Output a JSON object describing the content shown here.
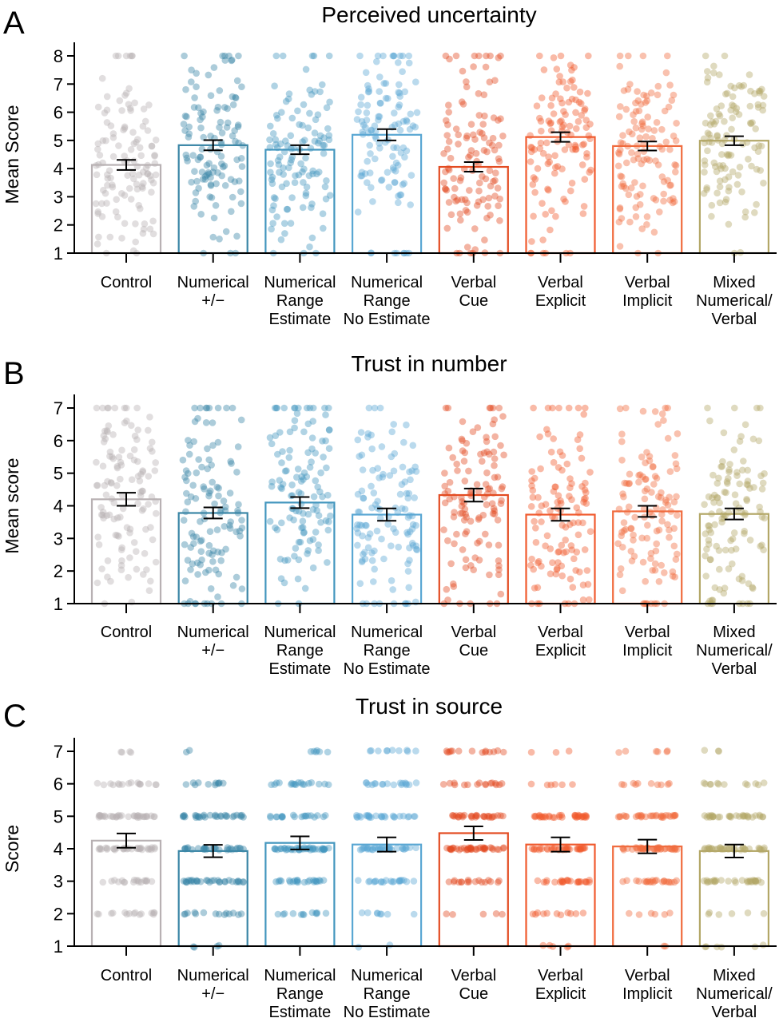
{
  "colors": {
    "Control": "#b8b1b3",
    "Numerical +/-": "#3a86a6",
    "Numerical Range Estimate": "#4396be",
    "Numerical Range No Estimate": "#5aa7d3",
    "Verbal Cue": "#e34b21",
    "Verbal Explicit": "#f05a2e",
    "Verbal Implicit": "#f06b3e",
    "Mixed Numerical/Verbal": "#b3a767",
    "axis": "#000000",
    "errorbar": "#000000"
  },
  "chart_data": [
    {
      "panel": "A",
      "type": "bar",
      "title": "Perceived uncertainty",
      "ylabel": "Mean Score",
      "xlabel": "",
      "ylim": [
        1,
        8
      ],
      "yticks": [
        1,
        2,
        3,
        4,
        5,
        6,
        7,
        8
      ],
      "discrete": false,
      "categories": [
        {
          "key": "Control",
          "label": [
            "Control"
          ]
        },
        {
          "key": "Numerical +/-",
          "label": [
            "Numerical",
            "+/−"
          ]
        },
        {
          "key": "Numerical Range Estimate",
          "label": [
            "Numerical",
            "Range",
            "Estimate"
          ]
        },
        {
          "key": "Numerical Range No Estimate",
          "label": [
            "Numerical",
            "Range",
            "No Estimate"
          ]
        },
        {
          "key": "Verbal Cue",
          "label": [
            "Verbal",
            "Cue"
          ]
        },
        {
          "key": "Verbal Explicit",
          "label": [
            "Verbal",
            "Explicit"
          ]
        },
        {
          "key": "Verbal Implicit",
          "label": [
            "Verbal",
            "Implicit"
          ]
        },
        {
          "key": "Mixed Numerical/Verbal",
          "label": [
            "Mixed",
            "Numerical/",
            "Verbal"
          ]
        }
      ],
      "values": [
        4.13,
        4.83,
        4.67,
        5.2,
        4.06,
        5.12,
        4.8,
        4.99
      ],
      "error": [
        0.18,
        0.18,
        0.16,
        0.2,
        0.17,
        0.17,
        0.16,
        0.16
      ]
    },
    {
      "panel": "B",
      "type": "bar",
      "title": "Trust in number",
      "ylabel": "Mean score",
      "xlabel": "",
      "ylim": [
        1,
        7
      ],
      "yticks": [
        1,
        2,
        3,
        4,
        5,
        6,
        7
      ],
      "discrete": false,
      "categories": [
        {
          "key": "Control",
          "label": [
            "Control"
          ]
        },
        {
          "key": "Numerical +/-",
          "label": [
            "Numerical",
            "+/−"
          ]
        },
        {
          "key": "Numerical Range Estimate",
          "label": [
            "Numerical",
            "Range",
            "Estimate"
          ]
        },
        {
          "key": "Numerical Range No Estimate",
          "label": [
            "Numerical",
            "Range",
            "No Estimate"
          ]
        },
        {
          "key": "Verbal Cue",
          "label": [
            "Verbal",
            "Cue"
          ]
        },
        {
          "key": "Verbal Explicit",
          "label": [
            "Verbal",
            "Explicit"
          ]
        },
        {
          "key": "Verbal Implicit",
          "label": [
            "Verbal",
            "Implicit"
          ]
        },
        {
          "key": "Mixed Numerical/Verbal",
          "label": [
            "Mixed",
            "Numerical/",
            "Verbal"
          ]
        }
      ],
      "values": [
        4.2,
        3.78,
        4.1,
        3.73,
        4.33,
        3.73,
        3.83,
        3.75
      ],
      "error": [
        0.2,
        0.17,
        0.17,
        0.19,
        0.2,
        0.19,
        0.17,
        0.17
      ]
    },
    {
      "panel": "C",
      "type": "bar",
      "title": "Trust in source",
      "ylabel": "Score",
      "xlabel": "",
      "ylim": [
        1,
        7
      ],
      "yticks": [
        1,
        2,
        3,
        4,
        5,
        6,
        7
      ],
      "discrete": true,
      "categories": [
        {
          "key": "Control",
          "label": [
            "Control"
          ]
        },
        {
          "key": "Numerical +/-",
          "label": [
            "Numerical",
            "+/−"
          ]
        },
        {
          "key": "Numerical Range Estimate",
          "label": [
            "Numerical",
            "Range",
            "Estimate"
          ]
        },
        {
          "key": "Numerical Range No Estimate",
          "label": [
            "Numerical",
            "Range",
            "No Estimate"
          ]
        },
        {
          "key": "Verbal Cue",
          "label": [
            "Verbal",
            "Cue"
          ]
        },
        {
          "key": "Verbal Explicit",
          "label": [
            "Verbal",
            "Explicit"
          ]
        },
        {
          "key": "Verbal Implicit",
          "label": [
            "Verbal",
            "Implicit"
          ]
        },
        {
          "key": "Mixed Numerical/Verbal",
          "label": [
            "Mixed",
            "Numerical/",
            "Verbal"
          ]
        }
      ],
      "values": [
        4.25,
        3.93,
        4.18,
        4.13,
        4.48,
        4.13,
        4.07,
        3.93
      ],
      "error": [
        0.22,
        0.19,
        0.2,
        0.22,
        0.21,
        0.22,
        0.21,
        0.2
      ]
    }
  ]
}
